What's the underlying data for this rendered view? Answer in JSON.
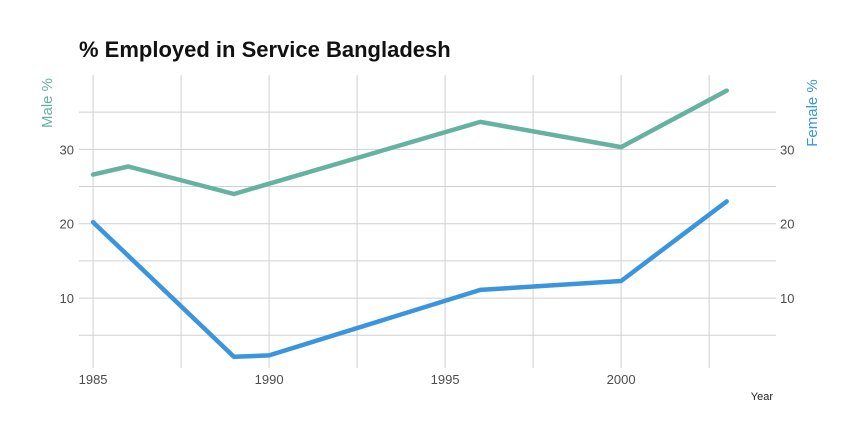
{
  "chart_data": {
    "type": "line",
    "title": "% Employed in Service Bangladesh",
    "xlabel": "Year",
    "ylabel_left": "Male %",
    "ylabel_right": "Female %",
    "xlim": [
      1984.6,
      2004.4
    ],
    "ylim": [
      0.6,
      40.0
    ],
    "x_ticks": [
      1985,
      1990,
      1995,
      2000
    ],
    "x_minor_ticks": [
      1987.5,
      1992.5,
      1997.5,
      2002.5
    ],
    "y_ticks": [
      10,
      20,
      30
    ],
    "y_minor_ticks": [
      5,
      15,
      25,
      35
    ],
    "grid": true,
    "legend": "none",
    "series": [
      {
        "name": "Male %",
        "axis": "left",
        "color": "#66b2a0",
        "x": [
          1985,
          1986,
          1989,
          1996,
          2000,
          2003
        ],
        "values": [
          26.6,
          27.7,
          24.0,
          33.7,
          30.3,
          37.9
        ]
      },
      {
        "name": "Female %",
        "axis": "right",
        "color": "#3a95de",
        "x": [
          1985,
          1989,
          1990,
          1996,
          2000,
          2003
        ],
        "values": [
          20.2,
          2.1,
          2.3,
          11.1,
          12.3,
          23.0
        ]
      }
    ],
    "colors": {
      "left_axis_title": "#66b2a0",
      "right_axis_title": "#3a95de"
    }
  }
}
